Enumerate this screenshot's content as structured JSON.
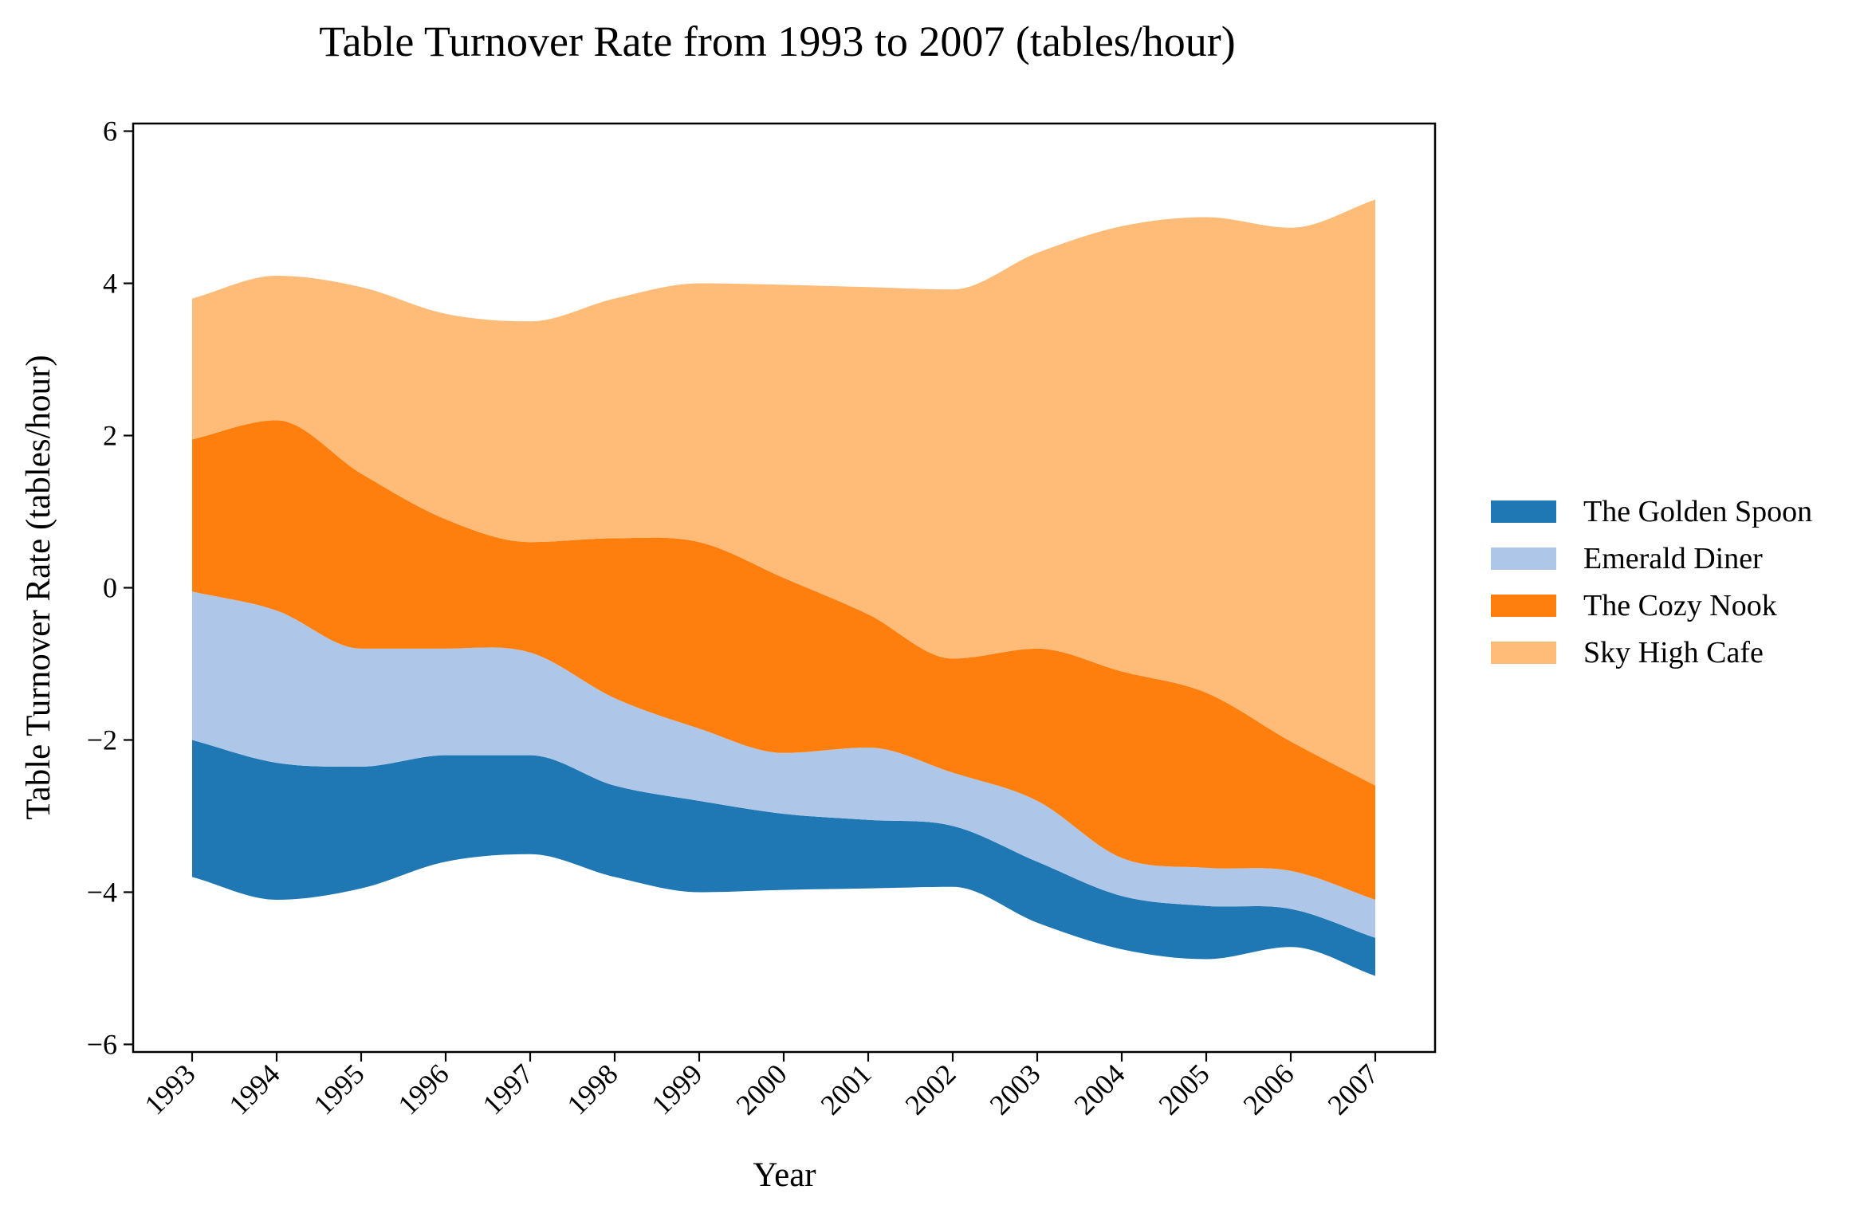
{
  "chart_data": {
    "type": "area",
    "title": "Table Turnover Rate from 1993 to 2007 (tables/hour)",
    "xlabel": "Year",
    "ylabel": "Table Turnover Rate (tables/hour)",
    "categories": [
      "1993",
      "1994",
      "1995",
      "1996",
      "1997",
      "1998",
      "1999",
      "2000",
      "2001",
      "2002",
      "2003",
      "2004",
      "2005",
      "2006",
      "2007"
    ],
    "ylim": [
      -6.1,
      6.1
    ],
    "yticks": [
      -6,
      -4,
      -2,
      0,
      2,
      4,
      6
    ],
    "ytick_labels": [
      "−6",
      "−4",
      "−2",
      "0",
      "2",
      "4",
      "6"
    ],
    "baseline": [
      -3.8,
      -4.1,
      -3.95,
      -3.6,
      -3.5,
      -3.8,
      -4.0,
      -3.97,
      -3.95,
      -3.93,
      -4.4,
      -4.75,
      -4.88,
      -4.72,
      -5.1
    ],
    "series": [
      {
        "name": "The Golden Spoon",
        "color": "#1f77b4",
        "values": [
          1.8,
          1.8,
          1.6,
          1.4,
          1.3,
          1.2,
          1.2,
          1.0,
          0.9,
          0.8,
          0.8,
          0.7,
          0.7,
          0.5,
          0.5
        ]
      },
      {
        "name": "Emerald Diner",
        "color": "#aec7e8",
        "values": [
          1.95,
          2.0,
          1.55,
          1.4,
          1.35,
          1.15,
          0.95,
          0.8,
          0.95,
          0.7,
          0.8,
          0.5,
          0.5,
          0.5,
          0.5
        ]
      },
      {
        "name": "The Cozy Nook",
        "color": "#ff7f0e",
        "values": [
          2.0,
          2.5,
          2.3,
          1.7,
          1.45,
          2.1,
          2.45,
          2.3,
          1.75,
          1.5,
          2.0,
          2.45,
          2.3,
          1.7,
          1.5
        ]
      },
      {
        "name": "Sky High Cafe",
        "color": "#ffbb78",
        "values": [
          1.85,
          1.9,
          2.45,
          2.7,
          2.9,
          3.15,
          3.4,
          3.85,
          4.3,
          4.85,
          5.2,
          5.85,
          6.25,
          6.75,
          7.7
        ]
      }
    ],
    "legend": "right",
    "grid": false
  }
}
